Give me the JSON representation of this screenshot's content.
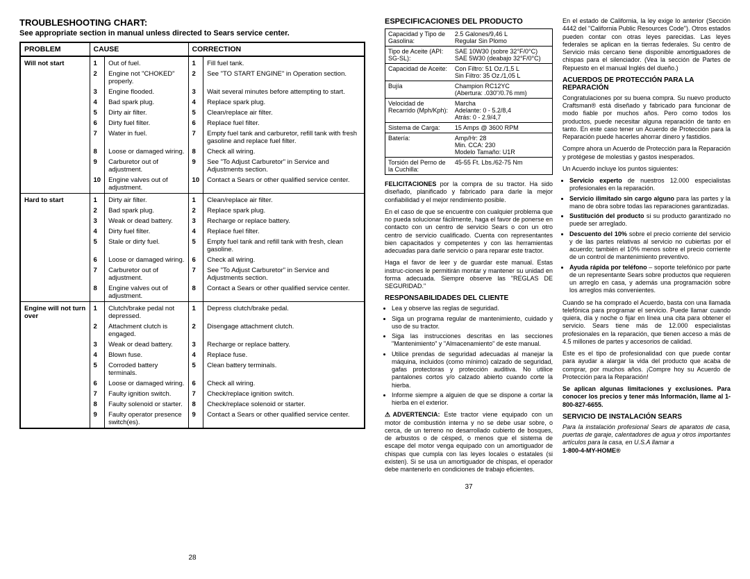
{
  "left": {
    "title": "TROUBLESHOOTING CHART:",
    "subtitle": "See appropriate section in manual unless directed to Sears service center.",
    "headers": {
      "problem": "PROBLEM",
      "cause": "CAUSE",
      "correction": "CORRECTION"
    },
    "sections": [
      {
        "problem": "Will not start",
        "rows": [
          {
            "n": "1",
            "cause": "Out of fuel.",
            "corr": "Fill fuel tank."
          },
          {
            "n": "2",
            "cause": "Engine not \"CHOKED\" properly.",
            "corr": "See \"TO START ENGINE\" in Operation section."
          },
          {
            "n": "3",
            "cause": "Engine flooded.",
            "corr": "Wait several minutes before attempting to start."
          },
          {
            "n": "4",
            "cause": "Bad spark plug.",
            "corr": "Replace spark plug."
          },
          {
            "n": "5",
            "cause": "Dirty air filter.",
            "corr": "Clean/replace air filter."
          },
          {
            "n": "6",
            "cause": "Dirty fuel filter.",
            "corr": "Replace fuel filter."
          },
          {
            "n": "7",
            "cause": "Water in fuel.",
            "corr": "Empty fuel tank and carburetor, refill tank with fresh gasoline and replace fuel filter."
          },
          {
            "n": "8",
            "cause": "Loose or damaged wiring.",
            "corr": "Check all wiring."
          },
          {
            "n": "9",
            "cause": "Carburetor out of adjustment.",
            "corr": "See \"To Adjust Carburetor\" in Service and Adjustments section."
          },
          {
            "n": "10",
            "cause": "Engine valves out of adjustment.",
            "corr": "Contact a Sears or other qualified service center."
          }
        ]
      },
      {
        "problem": "Hard to start",
        "rows": [
          {
            "n": "1",
            "cause": "Dirty air filter.",
            "corr": "Clean/replace air filter."
          },
          {
            "n": "2",
            "cause": "Bad spark plug.",
            "corr": "Replace spark plug."
          },
          {
            "n": "3",
            "cause": "Weak or dead battery.",
            "corr": "Recharge or replace battery."
          },
          {
            "n": "4",
            "cause": "Dirty fuel filter.",
            "corr": "Replace fuel filter."
          },
          {
            "n": "5",
            "cause": "Stale or dirty fuel.",
            "corr": "Empty fuel tank and refill tank with fresh, clean gasoline."
          },
          {
            "n": "6",
            "cause": "Loose or damaged wiring.",
            "corr": "Check all wiring."
          },
          {
            "n": "7",
            "cause": "Carburetor out of adjustment.",
            "corr": "See \"To Adjust Carburetor\" in Service and Adjustments section."
          },
          {
            "n": "8",
            "cause": "Engine valves out of adjustment.",
            "corr": "Contact a Sears or other qualified service center."
          }
        ]
      },
      {
        "problem": "Engine will not turn over",
        "rows": [
          {
            "n": "1",
            "cause": "Clutch/brake pedal not depressed.",
            "corr": "Depress clutch/brake pedal."
          },
          {
            "n": "2",
            "cause": "Attachment clutch is engaged.",
            "corr": "Disengage attachment clutch."
          },
          {
            "n": "3",
            "cause": "Weak or dead battery.",
            "corr": "Recharge or replace battery."
          },
          {
            "n": "4",
            "cause": "Blown fuse.",
            "corr": "Replace fuse."
          },
          {
            "n": "5",
            "cause": "Corroded battery terminals.",
            "corr": "Clean battery terminals."
          },
          {
            "n": "6",
            "cause": "Loose or damaged wiring.",
            "corr": "Check all wiring."
          },
          {
            "n": "7",
            "cause": "Faulty ignition switch.",
            "corr": "Check/replace ignition switch."
          },
          {
            "n": "8",
            "cause": "Faulty solenoid or starter.",
            "corr": "Check/replace solenoid or starter."
          },
          {
            "n": "9",
            "cause": "Faulty operator presence switch(es).",
            "corr": "Contact a Sears or other qualified service center."
          }
        ]
      }
    ],
    "page_num": "28"
  },
  "right": {
    "spec_title": "ESPECIFICACIONES DEL PRODUCTO",
    "specs": [
      {
        "sep": true,
        "label": "Capacidad y Tipo de Gasolina:",
        "value": "2.5 Galones/9,46 L\nRegular Sin Plomo"
      },
      {
        "sep": true,
        "label": "Tipo de Aceite (API: SG-SL):",
        "value": "SAE 10W30 (sobre 32°F/0°C)\nSAE 5W30 (deabajo 32°F/0°C)"
      },
      {
        "sep": true,
        "label": "Capacidad de Aceite:",
        "value": "Con Filtro:    51 Oz./1,5 L\nSin Filtro:     35 Oz./1,05 L"
      },
      {
        "sep": true,
        "label": "Bujía",
        "value": "Champion RC12YC\n(Abertura: .030\"/0.76 mm)"
      },
      {
        "sep": true,
        "label": "Velocidad de Recarrido (Mph/Kph):",
        "value": "Marcha\nAdelante:    0 - 5.2/8,4\nAtrás:          0 - 2.9/4,7"
      },
      {
        "sep": true,
        "label": "Sistema de Carga:",
        "value": "15 Amps @ 3600 RPM"
      },
      {
        "sep": true,
        "label": "Batería:",
        "value": "Amp/Hr:               28\nMin. CCA:            230\nModelo Tamaño:  U1R"
      },
      {
        "sep": true,
        "label": "Torsión del Perno de la Cuchilla:",
        "value": "45-55 Ft. Lbs./62-75 Nm"
      }
    ],
    "felicit_label": "FELICITACIONES",
    "felicit_text": " por la compra de su tractor. Ha sido diseñado, planificado y fabricado para darle la mejor confiabilidad y el mejor rendimiento posible.",
    "para1": "En el caso de que se encuentre con cualquier problema que no pueda solucionar fácilmente, haga el favor de ponerse en contacto con un centro de servicio Sears o con un otro centro de servicio cualificado. Cuenta con representantes bien capacitados y competentes y con las herramientas adecuadas para darle servicio o para reparar este tractor.",
    "para2": "Haga el favor de leer y de guardar este manual. Estas instruc-ciones le permitirán montar y mantener su unidad en forma adecuada. Siempre observe las \"REGLAS DE SEGURIDAD.\"",
    "resp_title": "RESPONSABILIDADES DEL CLIENTE",
    "resp_bullets": [
      "Lea y observe las reglas de seguridad.",
      "Siga un programa regular de mantenimiento, cuidado y uso de su tractor.",
      "Siga las instrucciones descritas en las secciones \"Mantenimiento\" y \"Almacenamiento\" de este manual.",
      "Utilice prendas de seguridad adecuadas al manejar la máquina, incluidos (como mínimo) calzado de seguridad, gafas protectoras y protección auditiva. No utilice pantalones cortos y/o calzado abierto cuando corte la hierba.",
      "Informe siempre a alguien de que se dispone a cortar la hierba en el exterior."
    ],
    "warn_label": "ADVERTENCIA:",
    "warn_text": " Este tractor viene equipado con un motor de combustión interna y no se debe usar sobre, o cerca, de un terreno no desarrollado cubierto de bosques, de arbustos o de césped, o menos que el sistema de escape del motor venga equipado con un amortiguador de chispas que cumpla con las leyes locales o estatales (si existen). Si se usa un amortiguador de chispas, el operador debe mantenerlo en condiciones de trabajo eficientes.",
    "calif_text": "En el estado de California, la ley exige lo anterior (Sección 4442 del \"California Public Resources Code\"). Otros estados pueden contar con otras leyes parecidas. Las leyes federales se aplican en la tierras federales. Su centro de Servicio más cercano tiene disponible amortiguadores de chispas para el silenciador. (Vea la sección de Partes de Repuesto en el manual Inglés del dueño.)",
    "acuerdo_title": "ACUERDOS DE PROTECCIÓN PARA LA REPARACIÓN",
    "acuerdo_p1": "Congratulaciones por su buena compra. Su nuevo producto Craftsman® está diseñado y fabricado para funcionar de modo fiable por muchos años. Pero como todos los productos, puede necesitar alguna reparación de tanto en tanto. En este caso tener un Acuerdo de Protección para la Reparación puede hacerles ahorrar dinero y fastidios.",
    "acuerdo_p2": "Compre ahora un Acuerdo de Protección para la Reparación y protégese de molestias y gastos inesperados.",
    "acuerdo_p3": "Un Acuerdo incluye los puntos siguientes:",
    "acuerdo_bullets": [
      "<b>Servicio experto</b> de nuestros 12.000 especialistas profesionales en la reparación.",
      "<b>Servicio ilimitado sin cargo alguno</b> para las partes y la mano de obra sobre todas las reparaciones garantizadas.",
      "<b>Sustitución del producto</b> si su producto garantizado no puede ser arreglado.",
      "<b>Descuento del 10%</b> sobre el precio corriente del servicio y de las partes relativas al servicio no cubiertas por el acuerdo; también el 10% menos sobre el precio corriente de un control de mantenimiento preventivo.",
      "<b>Ayuda rápida por teléfono</b> – soporte telefónico por parte de un representante Sears sobre productos que requieren un arreglo en casa, y además una programación sobre los arreglos más convenientes."
    ],
    "acuerdo_p4": "Cuando se ha comprado el Acuerdo, basta con una llamada telefónica para programar el servicio. Puede llamar cuando quiera, día y noche o fijar en línea una cita para obtener el servicio. Sears tiene más de 12.000 especialistas profesionales en la reparación, que tienen acceso a más de 4.5 millones de partes y accesorios de calidad.",
    "acuerdo_p5": "Este es el tipo de profesionalidad con que puede contar para ayudar a alargar la vida del producto que acaba de comprar, por muchos años. ¡Compre hoy su Acuerdo de Protección para la Reparación!",
    "acuerdo_bold": "Se aplican algunas limitaciones y exclusiones. Para conocer los precios y tener más Información, llame al 1-800-827-6655.",
    "serv_title": "SERVICIO DE INSTALACIÓN SEARS",
    "serv_text": "Para la instalación profesional Sears de aparatos de casa, puertas de garaje, calentadores de agua y otros importantes artículos para la casa, en U.S.A llamar a",
    "serv_phone": "1-800-4-MY-HOME®",
    "page_num": "37"
  }
}
